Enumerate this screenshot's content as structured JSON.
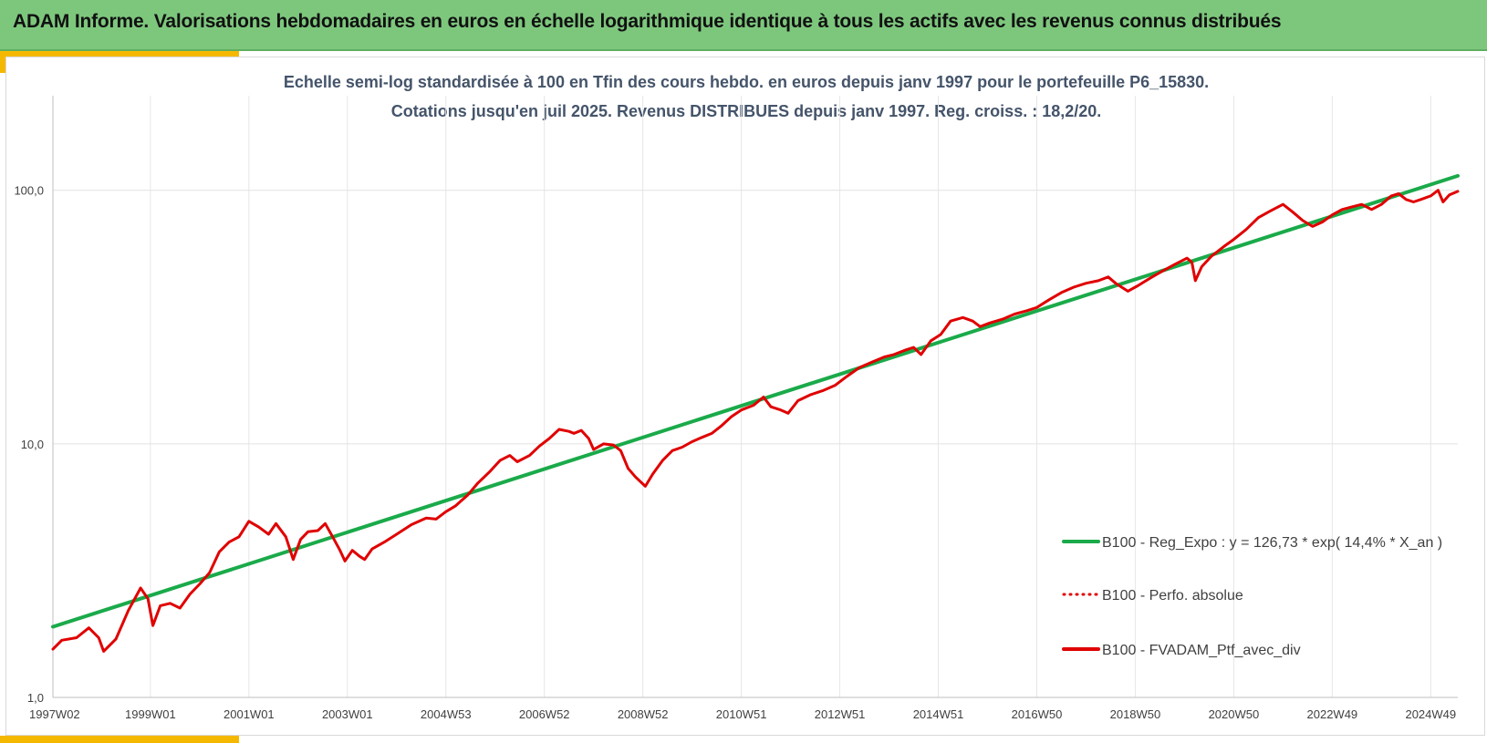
{
  "banner": {
    "title": "ADAM Informe. Valorisations hebdomadaires en euros en échelle logarithmique identique à tous les actifs avec les revenus connus distribués"
  },
  "chart_data": {
    "type": "line",
    "title_lines": [
      "Echelle semi-log standardisée à 100 en Tfin des cours hebdo.  en euros depuis janv 1997 pour le portefeuille P6_15830.",
      "Cotations jusqu'en juil 2025. Revenus DISTRIBUES depuis janv 1997. Reg. croiss. : 18,2/20."
    ],
    "y_scale": "log",
    "ylim": [
      1,
      200
    ],
    "y_ticks": [
      {
        "value": 1,
        "label": "1,0"
      },
      {
        "value": 10,
        "label": "10,0"
      },
      {
        "value": 100,
        "label": "100,0"
      }
    ],
    "xlim": [
      1997.02,
      2025.55
    ],
    "x_ticks": [
      {
        "value": 1997.02,
        "label": "1997W02"
      },
      {
        "value": 1999.0,
        "label": "1999W01"
      },
      {
        "value": 2001.0,
        "label": "2001W01"
      },
      {
        "value": 2003.0,
        "label": "2003W01"
      },
      {
        "value": 2005.0,
        "label": "2004W53"
      },
      {
        "value": 2007.0,
        "label": "2006W52"
      },
      {
        "value": 2009.0,
        "label": "2008W52"
      },
      {
        "value": 2011.0,
        "label": "2010W51"
      },
      {
        "value": 2013.0,
        "label": "2012W51"
      },
      {
        "value": 2015.0,
        "label": "2014W51"
      },
      {
        "value": 2017.0,
        "label": "2016W50"
      },
      {
        "value": 2019.0,
        "label": "2018W50"
      },
      {
        "value": 2021.0,
        "label": "2020W50"
      },
      {
        "value": 2023.0,
        "label": "2022W49"
      },
      {
        "value": 2025.0,
        "label": "2024W49"
      }
    ],
    "grid": {
      "vertical": true,
      "horizontal": true
    },
    "legend_position": "right",
    "series": [
      {
        "name": "B100 - Reg_Expo : y = 126,73 * exp( 14,4% *  X_an )",
        "color": "#1aaa4a",
        "style": "solid",
        "points": [
          [
            1997.02,
            1.9
          ],
          [
            2025.55,
            114
          ]
        ]
      },
      {
        "name": "B100 - Perfo. absolue",
        "color": "#e00000",
        "style": "dotted",
        "points": []
      },
      {
        "name": "B100 - FVADAM_Ptf_avec_div",
        "color": "#e00000",
        "style": "solid",
        "points": [
          [
            1997.02,
            1.55
          ],
          [
            1997.2,
            1.68
          ],
          [
            1997.5,
            1.72
          ],
          [
            1997.75,
            1.88
          ],
          [
            1997.95,
            1.72
          ],
          [
            1998.05,
            1.52
          ],
          [
            1998.3,
            1.7
          ],
          [
            1998.55,
            2.2
          ],
          [
            1998.8,
            2.7
          ],
          [
            1998.95,
            2.45
          ],
          [
            1999.05,
            1.92
          ],
          [
            1999.2,
            2.3
          ],
          [
            1999.4,
            2.35
          ],
          [
            1999.6,
            2.25
          ],
          [
            1999.8,
            2.55
          ],
          [
            2000.0,
            2.8
          ],
          [
            2000.2,
            3.1
          ],
          [
            2000.4,
            3.75
          ],
          [
            2000.6,
            4.1
          ],
          [
            2000.8,
            4.3
          ],
          [
            2001.0,
            4.95
          ],
          [
            2001.2,
            4.7
          ],
          [
            2001.4,
            4.4
          ],
          [
            2001.55,
            4.85
          ],
          [
            2001.75,
            4.3
          ],
          [
            2001.9,
            3.5
          ],
          [
            2002.05,
            4.2
          ],
          [
            2002.2,
            4.5
          ],
          [
            2002.4,
            4.55
          ],
          [
            2002.55,
            4.85
          ],
          [
            2002.7,
            4.3
          ],
          [
            2002.85,
            3.8
          ],
          [
            2002.95,
            3.45
          ],
          [
            2003.1,
            3.8
          ],
          [
            2003.25,
            3.6
          ],
          [
            2003.35,
            3.5
          ],
          [
            2003.5,
            3.85
          ],
          [
            2003.75,
            4.1
          ],
          [
            2004.0,
            4.4
          ],
          [
            2004.3,
            4.8
          ],
          [
            2004.6,
            5.1
          ],
          [
            2004.8,
            5.05
          ],
          [
            2005.0,
            5.4
          ],
          [
            2005.2,
            5.7
          ],
          [
            2005.45,
            6.3
          ],
          [
            2005.65,
            7.0
          ],
          [
            2005.9,
            7.8
          ],
          [
            2006.1,
            8.6
          ],
          [
            2006.3,
            9.0
          ],
          [
            2006.45,
            8.5
          ],
          [
            2006.7,
            9.0
          ],
          [
            2006.9,
            9.8
          ],
          [
            2007.1,
            10.5
          ],
          [
            2007.3,
            11.4
          ],
          [
            2007.5,
            11.2
          ],
          [
            2007.6,
            11.0
          ],
          [
            2007.75,
            11.3
          ],
          [
            2007.9,
            10.5
          ],
          [
            2008.0,
            9.5
          ],
          [
            2008.2,
            10.0
          ],
          [
            2008.4,
            9.9
          ],
          [
            2008.55,
            9.4
          ],
          [
            2008.7,
            8.0
          ],
          [
            2008.85,
            7.4
          ],
          [
            2009.05,
            6.8
          ],
          [
            2009.2,
            7.6
          ],
          [
            2009.4,
            8.6
          ],
          [
            2009.6,
            9.4
          ],
          [
            2009.8,
            9.7
          ],
          [
            2010.0,
            10.2
          ],
          [
            2010.2,
            10.6
          ],
          [
            2010.4,
            11.0
          ],
          [
            2010.6,
            11.8
          ],
          [
            2010.8,
            12.8
          ],
          [
            2011.0,
            13.6
          ],
          [
            2011.25,
            14.2
          ],
          [
            2011.45,
            15.3
          ],
          [
            2011.6,
            14.0
          ],
          [
            2011.8,
            13.6
          ],
          [
            2011.95,
            13.2
          ],
          [
            2012.15,
            14.8
          ],
          [
            2012.4,
            15.6
          ],
          [
            2012.65,
            16.2
          ],
          [
            2012.9,
            17.0
          ],
          [
            2013.15,
            18.5
          ],
          [
            2013.4,
            20.0
          ],
          [
            2013.65,
            21.0
          ],
          [
            2013.9,
            22.0
          ],
          [
            2014.1,
            22.5
          ],
          [
            2014.35,
            23.5
          ],
          [
            2014.5,
            24.0
          ],
          [
            2014.65,
            22.5
          ],
          [
            2014.85,
            25.5
          ],
          [
            2015.05,
            27.0
          ],
          [
            2015.25,
            30.5
          ],
          [
            2015.5,
            31.5
          ],
          [
            2015.7,
            30.5
          ],
          [
            2015.85,
            29.0
          ],
          [
            2016.05,
            30.0
          ],
          [
            2016.3,
            31.0
          ],
          [
            2016.55,
            32.5
          ],
          [
            2016.8,
            33.5
          ],
          [
            2017.0,
            34.5
          ],
          [
            2017.25,
            37.0
          ],
          [
            2017.5,
            39.5
          ],
          [
            2017.75,
            41.5
          ],
          [
            2018.0,
            43.0
          ],
          [
            2018.25,
            44.0
          ],
          [
            2018.45,
            45.5
          ],
          [
            2018.6,
            43.0
          ],
          [
            2018.85,
            40.0
          ],
          [
            2019.05,
            42.0
          ],
          [
            2019.3,
            45.0
          ],
          [
            2019.55,
            48.0
          ],
          [
            2019.8,
            51.0
          ],
          [
            2020.05,
            54.0
          ],
          [
            2020.15,
            52.0
          ],
          [
            2020.22,
            44.0
          ],
          [
            2020.35,
            50.0
          ],
          [
            2020.55,
            55.0
          ],
          [
            2020.8,
            60.0
          ],
          [
            2021.0,
            64.0
          ],
          [
            2021.25,
            70.0
          ],
          [
            2021.5,
            78.0
          ],
          [
            2021.75,
            83.0
          ],
          [
            2022.0,
            88.0
          ],
          [
            2022.2,
            82.0
          ],
          [
            2022.4,
            76.0
          ],
          [
            2022.6,
            72.0
          ],
          [
            2022.8,
            75.0
          ],
          [
            2023.0,
            80.0
          ],
          [
            2023.2,
            84.0
          ],
          [
            2023.4,
            86.0
          ],
          [
            2023.6,
            88.0
          ],
          [
            2023.8,
            84.0
          ],
          [
            2024.0,
            88.0
          ],
          [
            2024.2,
            95.0
          ],
          [
            2024.35,
            97.0
          ],
          [
            2024.5,
            92.0
          ],
          [
            2024.65,
            90.0
          ],
          [
            2024.8,
            92.0
          ],
          [
            2025.0,
            95.0
          ],
          [
            2025.15,
            100.0
          ],
          [
            2025.25,
            90.0
          ],
          [
            2025.38,
            96.0
          ],
          [
            2025.55,
            99.0
          ]
        ]
      }
    ]
  }
}
